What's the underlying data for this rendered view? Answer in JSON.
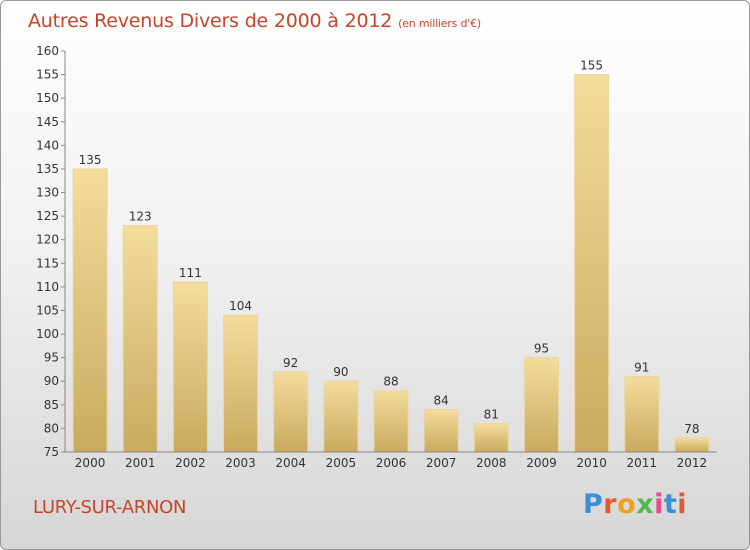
{
  "title": "Autres Revenus Divers de 2000 à 2012",
  "subtitle": "(en milliers d'€)",
  "place": "LURY-SUR-ARNON",
  "logo_text": "Proxiti",
  "colors": {
    "title": "#c8442b",
    "bar_light": "#f4dc9c",
    "bar_dark": "#c9aa5e",
    "logo": [
      "#3a8fd6",
      "#e05a2b",
      "#f0a020",
      "#54b848",
      "#e84a8a",
      "#3a8fd6",
      "#e05a2b"
    ]
  },
  "chart_data": {
    "type": "bar",
    "title": "Autres Revenus Divers de 2000 à 2012",
    "xlabel": "",
    "ylabel": "",
    "categories": [
      "2000",
      "2001",
      "2002",
      "2003",
      "2004",
      "2005",
      "2006",
      "2007",
      "2008",
      "2009",
      "2010",
      "2011",
      "2012"
    ],
    "values": [
      135,
      123,
      111,
      104,
      92,
      90,
      88,
      84,
      81,
      95,
      155,
      91,
      78
    ],
    "ylim": [
      75,
      160
    ],
    "yticks": [
      75,
      80,
      85,
      90,
      95,
      100,
      105,
      110,
      115,
      120,
      125,
      130,
      135,
      140,
      145,
      150,
      155,
      160
    ],
    "grid": false,
    "data_labels": true
  }
}
